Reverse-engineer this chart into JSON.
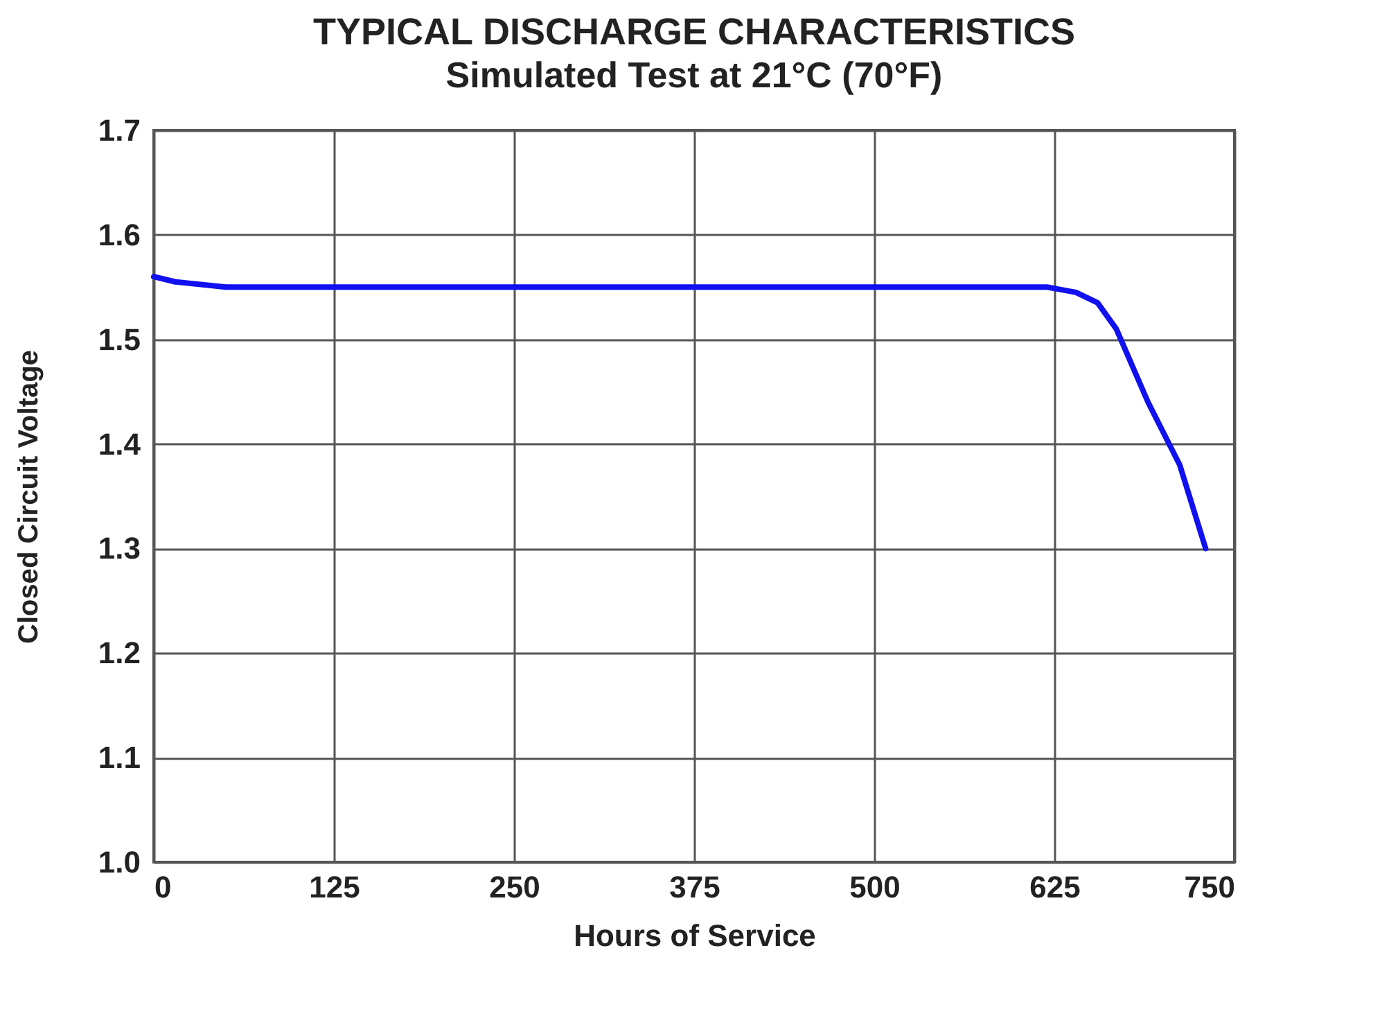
{
  "chart_data": {
    "type": "line",
    "title": "TYPICAL DISCHARGE CHARACTERISTICS",
    "subtitle": "Simulated Test at 21°C (70°F)",
    "xlabel": "Hours of Service",
    "ylabel": "Closed Circuit Voltage",
    "x": [
      0,
      15,
      50,
      620,
      640,
      655,
      668,
      690,
      712,
      730
    ],
    "series": [
      {
        "color": "#1010f0",
        "values": [
          1.56,
          1.555,
          1.55,
          1.55,
          1.545,
          1.535,
          1.51,
          1.44,
          1.38,
          1.3
        ]
      }
    ],
    "xlim": [
      0,
      750
    ],
    "xticks": [
      0,
      125,
      250,
      375,
      500,
      625,
      750
    ],
    "ylim": [
      1.0,
      1.7
    ],
    "yticks": [
      {
        "value": 1.0,
        "label": "1.0"
      },
      {
        "value": 1.1,
        "label": "1.1"
      },
      {
        "value": 1.2,
        "label": "1.2"
      },
      {
        "value": 1.3,
        "label": "1.3"
      },
      {
        "value": 1.4,
        "label": "1.4"
      },
      {
        "value": 1.5,
        "label": "1.5"
      },
      {
        "value": 1.6,
        "label": "1.6"
      },
      {
        "value": 1.7,
        "label": "1.7"
      }
    ],
    "grid": true,
    "marker": "none",
    "line_style": "solid"
  }
}
